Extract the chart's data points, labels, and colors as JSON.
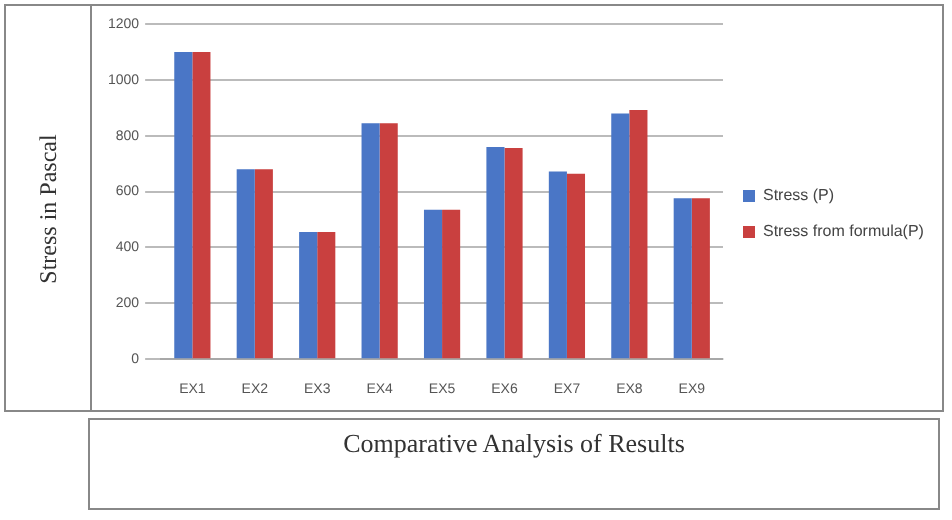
{
  "chart_data": {
    "type": "bar",
    "title": "Comparative Analysis of Results",
    "ylabel": "Stress in Pascal",
    "categories": [
      "EX1",
      "EX2",
      "EX3",
      "EX4",
      "EX5",
      "EX6",
      "EX7",
      "EX8",
      "EX9"
    ],
    "series": [
      {
        "name": "Stress (P)",
        "color": "#4a76c6",
        "values": [
          1100,
          680,
          455,
          845,
          535,
          760,
          672,
          880,
          576
        ]
      },
      {
        "name": "Stress from formula(P)",
        "color": "#c9403f",
        "values": [
          1100,
          680,
          455,
          845,
          535,
          756,
          664,
          892,
          576
        ]
      }
    ],
    "ylim": [
      0,
      1200
    ],
    "yticks": [
      0,
      200,
      400,
      600,
      800,
      1000,
      1200
    ],
    "grid": "y",
    "legend": "right"
  }
}
